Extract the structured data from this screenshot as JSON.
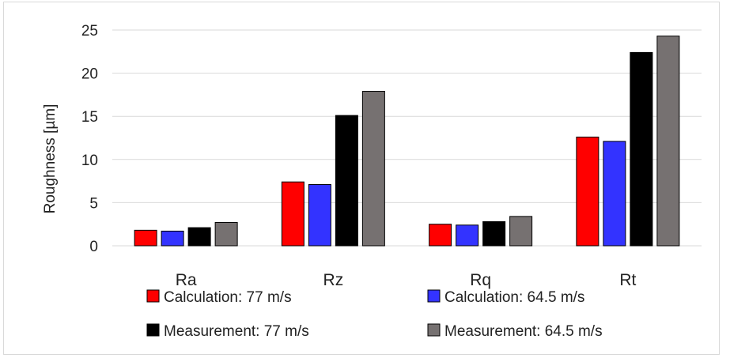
{
  "chart_data": {
    "type": "bar",
    "categories": [
      "Ra",
      "Rz",
      "Rq",
      "Rt"
    ],
    "series": [
      {
        "name": "Calculation: 77 m/s",
        "color": "#ff0000",
        "values": [
          1.8,
          7.4,
          2.5,
          12.6
        ]
      },
      {
        "name": "Calculation: 64.5 m/s",
        "color": "#3333ff",
        "values": [
          1.7,
          7.1,
          2.4,
          12.1
        ]
      },
      {
        "name": "Measurement: 77 m/s",
        "color": "#000000",
        "values": [
          2.1,
          15.1,
          2.8,
          22.4
        ]
      },
      {
        "name": "Measurement: 64.5 m/s",
        "color": "#767171",
        "values": [
          2.7,
          17.9,
          3.4,
          24.3
        ]
      }
    ],
    "title": "",
    "xlabel": "",
    "ylabel": "Roughness [µm]",
    "ylim": [
      0,
      25
    ],
    "yticks": [
      0,
      5,
      10,
      15,
      20,
      25
    ],
    "grid": true,
    "legend_position": "bottom"
  }
}
